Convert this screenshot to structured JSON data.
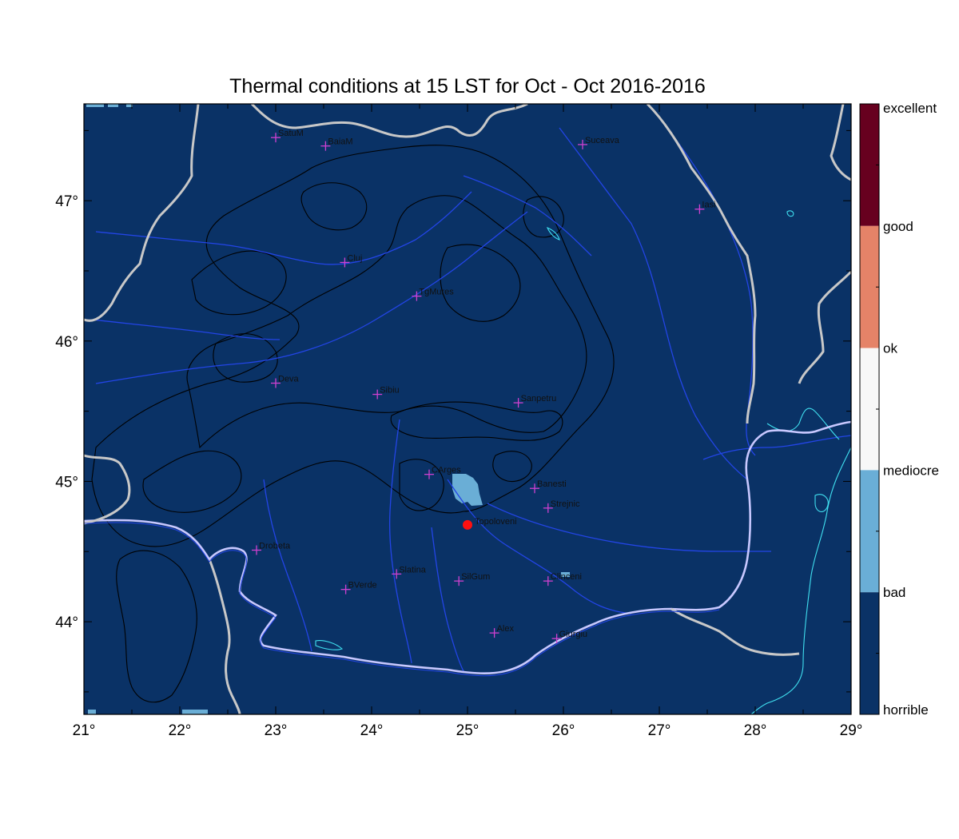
{
  "title": "Thermal conditions at 15 LST for Oct - Oct  2016-2016",
  "map": {
    "lon_range": [
      21,
      29
    ],
    "lat_range": [
      43.34,
      47.69
    ],
    "x_ticks": [
      "21°",
      "22°",
      "23°",
      "24°",
      "25°",
      "26°",
      "27°",
      "28°",
      "29°"
    ],
    "y_ticks": [
      "44°",
      "45°",
      "46°",
      "47°"
    ],
    "x_tick_values": [
      21,
      22,
      23,
      24,
      25,
      26,
      27,
      28,
      29
    ],
    "y_tick_values": [
      44,
      45,
      46,
      47
    ],
    "background_color": "#0a3266",
    "colors": {
      "border": "#c8c8c8",
      "river": "#2345e6",
      "coast": "#40e0f0",
      "contour": "#000000",
      "city_marker": "#d040d0",
      "highlight": "#ff1010",
      "bad_patch": "#6aaed6"
    }
  },
  "colorbar": {
    "labels": [
      "excellent",
      "good",
      "ok",
      "mediocre",
      "bad",
      "horrible"
    ],
    "colors": [
      "#67001f",
      "#e58368",
      "#f7f7f7",
      "#6aaed6",
      "#0a3266"
    ]
  },
  "cities": [
    {
      "name": "SatuM",
      "lon": 23.0,
      "lat": 47.45
    },
    {
      "name": "BaiaM",
      "lon": 23.52,
      "lat": 47.39
    },
    {
      "name": "Suceava",
      "lon": 26.2,
      "lat": 47.4
    },
    {
      "name": "Iasi",
      "lon": 27.42,
      "lat": 46.94
    },
    {
      "name": "Cluj",
      "lon": 23.72,
      "lat": 46.56
    },
    {
      "name": "TgMures",
      "lon": 24.47,
      "lat": 46.32
    },
    {
      "name": "Deva",
      "lon": 23.0,
      "lat": 45.7
    },
    {
      "name": "Sibiu",
      "lon": 24.06,
      "lat": 45.62
    },
    {
      "name": "Sanpetru",
      "lon": 25.53,
      "lat": 45.56
    },
    {
      "name": "CArges",
      "lon": 24.6,
      "lat": 45.05
    },
    {
      "name": "Banesti",
      "lon": 25.7,
      "lat": 44.95
    },
    {
      "name": "Strejnic",
      "lon": 25.84,
      "lat": 44.81
    },
    {
      "name": "Drobeta",
      "lon": 22.8,
      "lat": 44.51
    },
    {
      "name": "Slatina",
      "lon": 24.26,
      "lat": 44.34
    },
    {
      "name": "SilGum",
      "lon": 24.91,
      "lat": 44.29
    },
    {
      "name": "Clinceni",
      "lon": 25.84,
      "lat": 44.29
    },
    {
      "name": "BVerde",
      "lon": 23.73,
      "lat": 44.23
    },
    {
      "name": "Alex",
      "lon": 25.28,
      "lat": 43.92
    },
    {
      "name": "Giurgiu",
      "lon": 25.93,
      "lat": 43.88
    }
  ],
  "highlight": {
    "name": "Topoloveni",
    "lon": 25.0,
    "lat": 44.69
  }
}
